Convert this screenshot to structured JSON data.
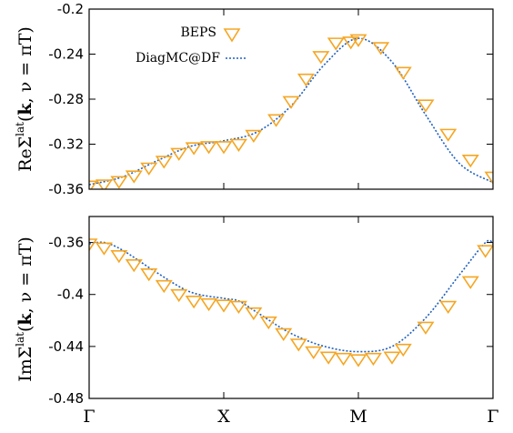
{
  "chart_data": [
    {
      "type": "line",
      "ylabel": "ReΣlat(k, ν = πT)",
      "ylim": [
        -0.36,
        -0.2
      ],
      "yticks": [
        "-0.2",
        "-0.24",
        "-0.28",
        "-0.32",
        "-0.36"
      ],
      "ytick_values": [
        -0.2,
        -0.24,
        -0.28,
        -0.32,
        -0.36
      ],
      "xlim": [
        0,
        3
      ],
      "xticks": [],
      "xtick_values": [
        0,
        1,
        2,
        3
      ],
      "legend_position": "top-right",
      "series": [
        {
          "name": "BEPS",
          "style": "markers",
          "marker": "down-triangle",
          "color": "#F5A623",
          "x": [
            0,
            0.111,
            0.222,
            0.333,
            0.444,
            0.556,
            0.667,
            0.778,
            0.889,
            1.0,
            1.111,
            1.222,
            1.389,
            1.5,
            1.611,
            1.722,
            1.833,
            1.944,
            2.0,
            2.167,
            2.333,
            2.5,
            2.667,
            2.833,
            3.0
          ],
          "y": [
            -0.357,
            -0.356,
            -0.353,
            -0.348,
            -0.341,
            -0.335,
            -0.328,
            -0.323,
            -0.322,
            -0.322,
            -0.32,
            -0.312,
            -0.298,
            -0.282,
            -0.262,
            -0.242,
            -0.23,
            -0.229,
            -0.227,
            -0.234,
            -0.256,
            -0.285,
            -0.311,
            -0.334,
            -0.349
          ]
        },
        {
          "name": "DiagMC@DF",
          "style": "dotted-line",
          "color": "#1F5FBF",
          "x": [
            0,
            0.25,
            0.5,
            0.75,
            1.0,
            1.25,
            1.5,
            1.75,
            2.0,
            2.25,
            2.5,
            2.75,
            3.0
          ],
          "y": [
            -0.356,
            -0.349,
            -0.335,
            -0.322,
            -0.317,
            -0.309,
            -0.286,
            -0.249,
            -0.226,
            -0.247,
            -0.294,
            -0.337,
            -0.354
          ]
        }
      ]
    },
    {
      "type": "line",
      "ylabel": "ImΣlat(k, ν = πT)",
      "ylim": [
        -0.48,
        -0.34
      ],
      "yticks": [
        "-0.36",
        "-0.4",
        "-0.44",
        "-0.48"
      ],
      "ytick_values": [
        -0.36,
        -0.4,
        -0.44,
        -0.48
      ],
      "xlim": [
        0,
        3
      ],
      "xticks": [
        "Γ",
        "X",
        "M",
        "Γ"
      ],
      "xtick_values": [
        0,
        1,
        2,
        3
      ],
      "series": [
        {
          "name": "BEPS",
          "style": "markers",
          "marker": "down-triangle",
          "color": "#F5A623",
          "x": [
            0,
            0.111,
            0.222,
            0.333,
            0.444,
            0.556,
            0.667,
            0.778,
            0.889,
            1.0,
            1.111,
            1.222,
            1.333,
            1.444,
            1.556,
            1.667,
            1.778,
            1.889,
            2.0,
            2.111,
            2.25,
            2.333,
            2.5,
            2.667,
            2.833,
            2.944
          ],
          "y": [
            -0.361,
            -0.364,
            -0.37,
            -0.377,
            -0.384,
            -0.393,
            -0.4,
            -0.405,
            -0.407,
            -0.408,
            -0.409,
            -0.414,
            -0.421,
            -0.43,
            -0.438,
            -0.444,
            -0.448,
            -0.449,
            -0.45,
            -0.449,
            -0.448,
            -0.442,
            -0.425,
            -0.409,
            -0.39,
            -0.366
          ]
        },
        {
          "name": "DiagMC@DF",
          "style": "dotted-line",
          "color": "#1F5FBF",
          "x": [
            0,
            0.111,
            0.25,
            0.5,
            0.75,
            1.0,
            1.111,
            1.25,
            1.5,
            1.75,
            2.0,
            2.25,
            2.5,
            2.75,
            2.944,
            3.0
          ],
          "y": [
            -0.361,
            -0.36,
            -0.366,
            -0.383,
            -0.398,
            -0.403,
            -0.405,
            -0.414,
            -0.43,
            -0.44,
            -0.444,
            -0.44,
            -0.418,
            -0.385,
            -0.36,
            -0.361
          ]
        }
      ]
    }
  ]
}
